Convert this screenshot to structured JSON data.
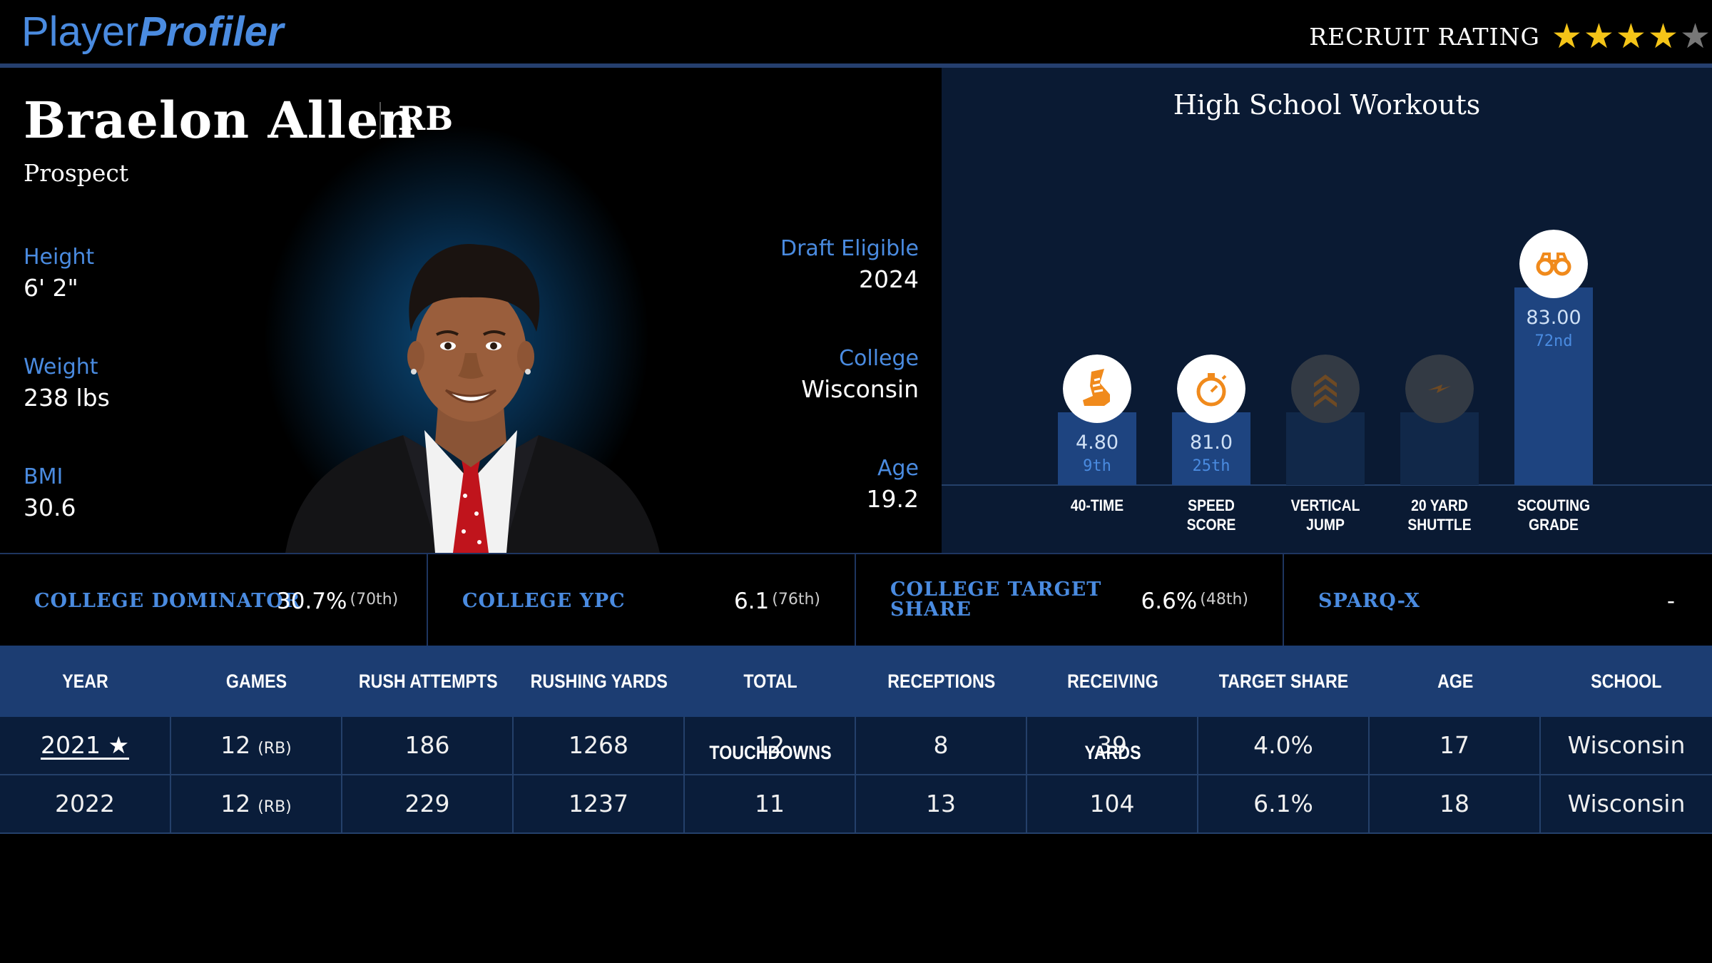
{
  "header": {
    "logo_part1": "Player",
    "logo_part2": "Profiler",
    "rating_label": "RECRUIT RATING",
    "stars_filled": 4,
    "stars_total": 5,
    "star_color": "#f5c518"
  },
  "player": {
    "name": "Braelon Allen",
    "position": "RB",
    "status": "Prospect",
    "height_label": "Height",
    "height": "6' 2\"",
    "weight_label": "Weight",
    "weight": "238 lbs",
    "bmi_label": "BMI",
    "bmi": "30.6",
    "draft_label": "Draft Eligible",
    "draft": "2024",
    "college_label": "College",
    "college": "Wisconsin",
    "age_label": "Age",
    "age": "19.2"
  },
  "workouts": {
    "title": "High School Workouts",
    "items": [
      {
        "label_line1": "40-TIME",
        "label_line2": "",
        "value": "4.80",
        "percentile": "9th",
        "percentile_value": 9,
        "icon": "running-shoe-icon",
        "active": true
      },
      {
        "label_line1": "SPEED",
        "label_line2": "SCORE",
        "value": "81.0",
        "percentile": "25th",
        "percentile_value": 25,
        "icon": "stopwatch-icon",
        "active": true
      },
      {
        "label_line1": "VERTICAL",
        "label_line2": "JUMP",
        "value": "",
        "percentile": "",
        "percentile_value": 0,
        "icon": "chevrons-up-icon",
        "active": false
      },
      {
        "label_line1": "20 YARD",
        "label_line2": "SHUTTLE",
        "value": "",
        "percentile": "",
        "percentile_value": 0,
        "icon": "lightning-icon",
        "active": false
      },
      {
        "label_line1": "SCOUTING",
        "label_line2": "GRADE",
        "value": "83.00",
        "percentile": "72nd",
        "percentile_value": 72,
        "icon": "binoculars-icon",
        "active": true
      }
    ],
    "accent": "#f08a1c"
  },
  "metrics": [
    {
      "label_line1": "COLLEGE DOMINATOR",
      "label_line2": "",
      "value": "30.7%",
      "percentile": "(70th)"
    },
    {
      "label_line1": "COLLEGE YPC",
      "label_line2": "",
      "value": "6.1",
      "percentile": "(76th)"
    },
    {
      "label_line1": "COLLEGE TARGET",
      "label_line2": "SHARE",
      "value": "6.6%",
      "percentile": "(48th)"
    },
    {
      "label_line1": "SPARQ-X",
      "label_line2": "",
      "value": "-",
      "percentile": ""
    }
  ],
  "table": {
    "headers": [
      "YEAR",
      "GAMES",
      "RUSH ATTEMPTS",
      "RUSHING YARDS",
      "TOTAL TOUCHDOWNS",
      "RECEPTIONS",
      "RECEIVING YARDS",
      "TARGET SHARE",
      "AGE",
      "SCHOOL"
    ],
    "rows": [
      {
        "year": "2021 ★",
        "games": "12",
        "games_pos": "(RB)",
        "rush_att": "186",
        "rush_yds": "1268",
        "td": "12",
        "rec": "8",
        "rec_yds": "39",
        "target": "4.0%",
        "age": "17",
        "school": "Wisconsin"
      },
      {
        "year": "2022",
        "games": "12",
        "games_pos": "(RB)",
        "rush_att": "229",
        "rush_yds": "1237",
        "td": "11",
        "rec": "13",
        "rec_yds": "104",
        "target": "6.1%",
        "age": "18",
        "school": "Wisconsin"
      }
    ]
  }
}
